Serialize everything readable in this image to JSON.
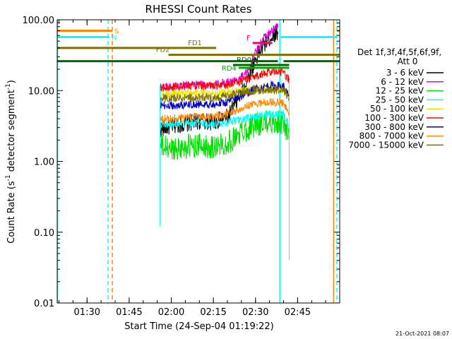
{
  "chart_data": {
    "type": "line",
    "title": "RHESSI Count Rates",
    "xlabel": "Start Time (24-Sep-04 01:19:22)",
    "ylabel_parts": [
      "Count Rate (s",
      "-1",
      " detector segment",
      "-1",
      ")"
    ],
    "xlim": [
      "01:19:22",
      "03:00:00"
    ],
    "ylim": [
      0.01,
      100
    ],
    "yscale": "log",
    "x_ticks": [
      "01:30",
      "01:45",
      "02:00",
      "02:15",
      "02:30",
      "02:45"
    ],
    "y_ticks": [
      "0.01",
      "0.10",
      "1.00",
      "10.00",
      "100.00"
    ],
    "legend_header": [
      "Det 1f,3f,4f,5f,6f,9f,",
      "Att 0"
    ],
    "legend_placement": "right",
    "series": [
      {
        "name": "3 - 6 keV",
        "color": "#000000",
        "x": [
          "01:56",
          "02:00",
          "02:05",
          "02:10",
          "02:15",
          "02:20",
          "02:25",
          "02:27",
          "02:30",
          "02:33",
          "02:36",
          "02:38"
        ],
        "values": [
          2.8,
          3.2,
          3.4,
          3.7,
          3.6,
          4.2,
          9.0,
          14,
          28,
          45,
          60,
          70
        ]
      },
      {
        "name": "6 - 12 keV",
        "color": "#e000e0",
        "x": [
          "01:56",
          "02:00",
          "02:05",
          "02:10",
          "02:15",
          "02:20",
          "02:24",
          "02:27",
          "02:30",
          "02:33",
          "02:36",
          "02:38"
        ],
        "values": [
          11,
          11.5,
          12,
          12.2,
          12,
          13,
          14.5,
          18,
          35,
          55,
          70,
          85
        ]
      },
      {
        "name": "12 - 25 keV",
        "color": "#00dd00",
        "x": [
          "01:56",
          "02:00",
          "02:05",
          "02:10",
          "02:15",
          "02:20",
          "02:25",
          "02:30",
          "02:35",
          "02:40",
          "02:42"
        ],
        "values": [
          1.6,
          1.5,
          1.6,
          1.7,
          1.6,
          1.8,
          2.6,
          3.3,
          3.6,
          3.5,
          2.4
        ]
      },
      {
        "name": "25 - 50 keV",
        "color": "#00ffff",
        "x": [
          "01:56",
          "02:00",
          "02:05",
          "02:10",
          "02:15",
          "02:20",
          "02:25",
          "02:30",
          "02:35",
          "02:40",
          "02:42"
        ],
        "values": [
          3.4,
          3.3,
          3.4,
          3.5,
          3.3,
          3.6,
          3.9,
          4.3,
          4.6,
          4.7,
          3.2
        ]
      },
      {
        "name": "50 - 100 keV",
        "color": "#e8e800",
        "x": [
          "01:56",
          "02:00",
          "02:05",
          "02:10",
          "02:15",
          "02:20",
          "02:25",
          "02:30",
          "02:35",
          "02:40",
          "02:42"
        ],
        "values": [
          9.0,
          9.0,
          9.2,
          9.3,
          9.0,
          9.4,
          10.0,
          10.3,
          10.6,
          10.4,
          8.5
        ]
      },
      {
        "name": "100 - 300 keV",
        "color": "#ff0000",
        "x": [
          "01:56",
          "02:00",
          "02:05",
          "02:10",
          "02:15",
          "02:20",
          "02:25",
          "02:30",
          "02:35",
          "02:40",
          "02:42"
        ],
        "values": [
          11,
          11.2,
          11.5,
          11.8,
          11.5,
          12.2,
          13.5,
          16,
          18,
          18.5,
          14
        ]
      },
      {
        "name": "300 - 800 keV",
        "color": "#0000cc",
        "x": [
          "01:56",
          "02:00",
          "02:05",
          "02:10",
          "02:15",
          "02:20",
          "02:25",
          "02:30",
          "02:35",
          "02:40",
          "02:42"
        ],
        "values": [
          6.2,
          6.1,
          6.3,
          6.5,
          6.3,
          6.9,
          8.5,
          10.5,
          11.8,
          11.5,
          8.0
        ]
      },
      {
        "name": "800 - 7000 keV",
        "color": "#ff8800",
        "x": [
          "01:56",
          "02:00",
          "02:05",
          "02:10",
          "02:15",
          "02:20",
          "02:25",
          "02:30",
          "02:35",
          "02:40",
          "02:42"
        ],
        "values": [
          4.0,
          4.0,
          4.1,
          4.3,
          4.2,
          4.6,
          5.7,
          6.6,
          6.9,
          6.7,
          5.0
        ]
      },
      {
        "name": "7000 - 15000 keV",
        "color": "#807000",
        "x": [
          "01:56",
          "02:00",
          "02:05",
          "02:10",
          "02:15",
          "02:20",
          "02:25",
          "02:30",
          "02:35",
          "02:40",
          "02:42"
        ],
        "values": [
          7.8,
          7.8,
          7.9,
          8.1,
          7.9,
          8.4,
          9.5,
          10.0,
          10.3,
          10.2,
          7.5
        ]
      }
    ],
    "interval_bars": [
      {
        "label": "S",
        "color": "#ff8800",
        "x": [
          "01:19:22",
          "01:39"
        ],
        "y": 70
      },
      {
        "label": "N",
        "color": "#00ffff",
        "x": [
          "01:19:22",
          "01:38"
        ],
        "y": 57
      },
      {
        "label": "FD1",
        "color": "#807000",
        "x": [
          "01:19:22",
          "02:16"
        ],
        "y": 40
      },
      {
        "label": "FD2",
        "color": "#807000",
        "x": [
          "01:59",
          "03:00:00"
        ],
        "y": 32
      },
      {
        "label": "F",
        "color": "#ff0066",
        "x": [
          "02:29",
          "02:36"
        ],
        "y": 47
      },
      {
        "label": "RD0",
        "color": "#006600",
        "x": [
          "02:22",
          "02:42"
        ],
        "y": 23
      },
      {
        "label": "RD4",
        "color": "#00aa00",
        "x": [
          "02:24",
          "02:42"
        ],
        "y": 21
      },
      {
        "label": "",
        "color": "#006600",
        "x": [
          "01:19:22",
          "02:38"
        ],
        "y": 26
      },
      {
        "label": "",
        "color": "#006600",
        "x": [
          "02:40",
          "03:00:00"
        ],
        "y": 26
      },
      {
        "label": "",
        "color": "#00ffff",
        "x": [
          "02:39",
          "02:59"
        ],
        "y": 57
      },
      {
        "label": "",
        "color": "#ff8800",
        "x": [
          "02:59",
          "03:00:00"
        ],
        "y": 70
      }
    ],
    "vertical_markers": [
      {
        "color": "#00ffff",
        "x": "01:19:30",
        "dashed": false
      },
      {
        "color": "#00ffff",
        "x": "01:37:30",
        "dashed": true
      },
      {
        "color": "#ff8800",
        "x": "01:39:00",
        "dashed": true
      },
      {
        "color": "#00ffff",
        "x": "02:38:40",
        "dashed": false
      },
      {
        "color": "#ff8800",
        "x": "02:57:50",
        "dashed": false
      },
      {
        "color": "#00ffff",
        "x": "02:59:00",
        "dashed": true
      }
    ]
  },
  "footer_timestamp": "21-Oct-2021 08:07"
}
